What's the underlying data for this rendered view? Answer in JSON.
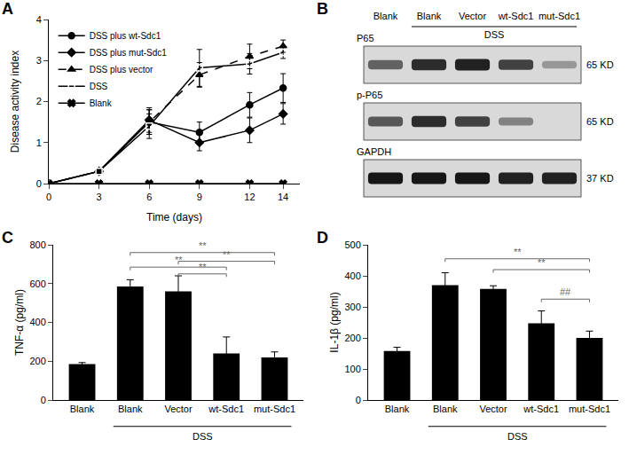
{
  "chart_data": [
    {
      "panel": "A",
      "type": "line",
      "x": [
        0,
        3,
        6,
        9,
        12,
        14
      ],
      "xlim": [
        0,
        15
      ],
      "xticks": [
        0,
        3,
        6,
        9,
        12,
        14
      ],
      "ylim": [
        0,
        4
      ],
      "yticks": [
        0,
        1,
        2,
        3,
        4
      ],
      "x_label": "Time (days)",
      "y_label": "Disease activity index",
      "legend": "upper left",
      "grid": false,
      "series": [
        {
          "name": "DSS plus wt-Sdc1",
          "color": "#000000",
          "marker": "circle",
          "line_style": "solid",
          "values": [
            0,
            0.3,
            1.5,
            1.25,
            1.92,
            2.33
          ],
          "errors": [
            0,
            0.05,
            0.3,
            0.25,
            0.3,
            0.35
          ]
        },
        {
          "name": "DSS plus mut-Sdc1",
          "color": "#000000",
          "marker": "diamond",
          "line_style": "solid",
          "values": [
            0,
            0.3,
            1.55,
            1.0,
            1.3,
            1.7
          ],
          "errors": [
            0,
            0.05,
            0.3,
            0.2,
            0.3,
            0.25
          ]
        },
        {
          "name": "DSS plus vector",
          "color": "#000000",
          "marker": "triangle-up",
          "line_style": "dash",
          "values": [
            0,
            0.3,
            1.5,
            2.65,
            3.1,
            3.35
          ],
          "errors": [
            0,
            0.05,
            0.3,
            0.3,
            0.3,
            0.15
          ]
        },
        {
          "name": "DSS",
          "color": "#000000",
          "marker": "square-open",
          "line_style": "solid",
          "values": [
            0,
            0.3,
            1.4,
            2.82,
            2.92,
            3.2
          ],
          "errors": [
            0,
            0.05,
            0.3,
            0.45,
            0.25,
            0.15
          ]
        },
        {
          "name": "Blank",
          "color": "#000000",
          "marker": "x",
          "line_style": "solid",
          "values": [
            0,
            0,
            0,
            0,
            0,
            0
          ],
          "errors": [
            0,
            0,
            0,
            0,
            0,
            0
          ]
        }
      ]
    },
    {
      "panel": "C",
      "type": "bar",
      "categories": [
        "Blank",
        "Blank",
        "Vector",
        "wt-Sdc1",
        "mut-Sdc1"
      ],
      "values": [
        185,
        585,
        560,
        240,
        220
      ],
      "errors": [
        8,
        35,
        80,
        85,
        28
      ],
      "color": "#000000",
      "ylim": [
        0,
        800
      ],
      "yticks": [
        0,
        200,
        400,
        600,
        800
      ],
      "y_label": "TNF-α (pg/ml)",
      "group": {
        "label": "DSS",
        "from": 1,
        "to": 4
      },
      "brackets": [
        {
          "from": 1,
          "to": 4,
          "y": 760,
          "text": "**"
        },
        {
          "from": 2,
          "to": 4,
          "y": 715,
          "text": "**"
        },
        {
          "from": 1,
          "to": 3,
          "y": 685,
          "text": "**"
        },
        {
          "from": 2,
          "to": 3,
          "y": 650,
          "text": "**"
        }
      ]
    },
    {
      "panel": "D",
      "type": "bar",
      "categories": [
        "Blank",
        "Blank",
        "Vector",
        "wt-Sdc1",
        "mut-Sdc1"
      ],
      "values": [
        158,
        370,
        358,
        247,
        200
      ],
      "errors": [
        12,
        40,
        10,
        40,
        22
      ],
      "color": "#000000",
      "ylim": [
        0,
        500
      ],
      "yticks": [
        0,
        100,
        200,
        300,
        400,
        500
      ],
      "y_label": "IL-1β (pg/ml)",
      "group": {
        "label": "DSS",
        "from": 1,
        "to": 4
      },
      "brackets": [
        {
          "from": 1,
          "to": 4,
          "y": 455,
          "text": "**"
        },
        {
          "from": 2,
          "to": 4,
          "y": 420,
          "text": "**"
        },
        {
          "from": 3,
          "to": 4,
          "y": 325,
          "text": "##"
        }
      ]
    }
  ],
  "blot": {
    "panel": "B",
    "lanes": [
      "Blank",
      "Blank",
      "Vector",
      "wt-Sdc1",
      "mut-Sdc1"
    ],
    "group": {
      "label": "DSS",
      "from": 1,
      "to": 4
    },
    "rows": [
      {
        "label": "P65",
        "size": "65 KD",
        "intensity": [
          0.55,
          0.8,
          0.85,
          0.7,
          0.3
        ]
      },
      {
        "label": "p-P65",
        "size": "65 KD",
        "intensity": [
          0.6,
          0.8,
          0.7,
          0.4,
          0.0
        ]
      },
      {
        "label": "GAPDH",
        "size": "37 KD",
        "intensity": [
          0.9,
          0.9,
          0.9,
          0.85,
          0.85
        ]
      }
    ]
  }
}
